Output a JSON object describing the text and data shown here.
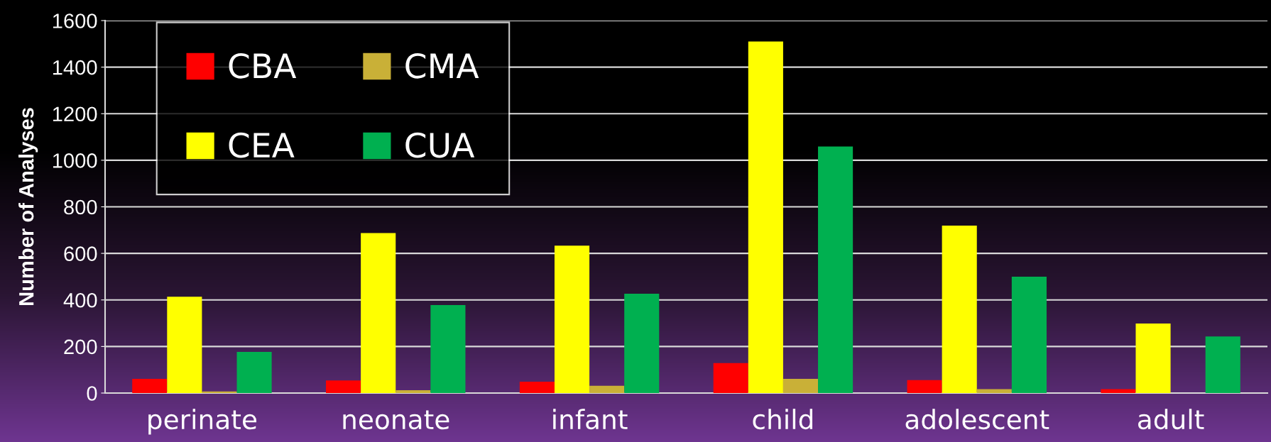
{
  "chart_data": {
    "type": "bar",
    "ylabel": "Number of Analyses",
    "categories": [
      "perinate",
      "neonate",
      "infant",
      "child",
      "adolescent",
      "adult"
    ],
    "series": [
      {
        "name": "CBA",
        "color": "#ff0000",
        "values": [
          61,
          54,
          49,
          129,
          56,
          17
        ]
      },
      {
        "name": "CEA",
        "color": "#ffff00",
        "values": [
          414,
          687,
          633,
          1510,
          719,
          299
        ]
      },
      {
        "name": "CMA",
        "color": "#c9b037",
        "values": [
          7,
          12,
          31,
          61,
          17,
          0
        ]
      },
      {
        "name": "CUA",
        "color": "#00b050",
        "values": [
          177,
          378,
          427,
          1059,
          500,
          243
        ]
      }
    ],
    "ylim": [
      0,
      1600
    ],
    "yticks": [
      0,
      200,
      400,
      600,
      800,
      1000,
      1200,
      1400,
      1600
    ],
    "grid": "y",
    "legend": "top left"
  }
}
